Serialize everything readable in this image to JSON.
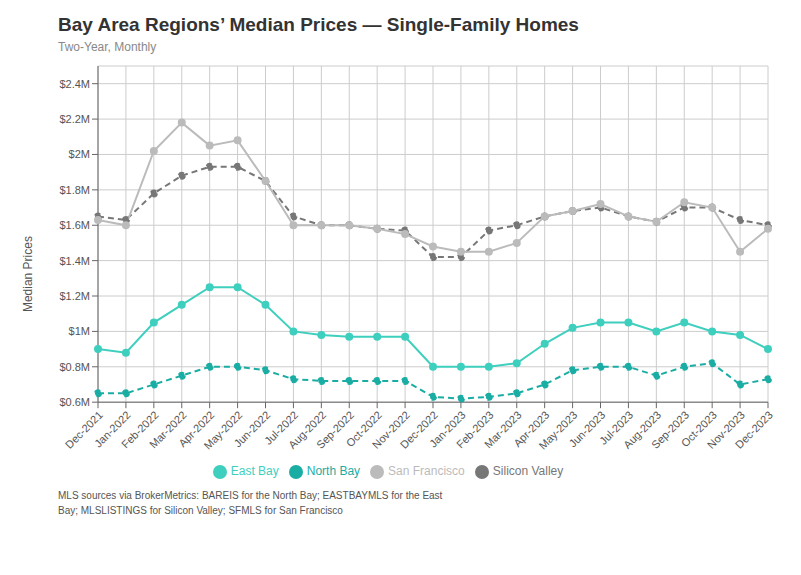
{
  "chart_data": {
    "type": "line",
    "title": "Bay Area Regions’ Median Prices — Single-Family Homes",
    "subtitle": "Two-Year, Monthly",
    "y_label": "Median Prices",
    "footnote": [
      "MLS sources via BrokerMetrics: BAREIS for the North Bay; EASTBAYMLS for the East",
      "Bay; MLSLISTINGS for Silicon Valley; SFMLS for San Francisco"
    ],
    "categories": [
      "Dec-2021",
      "Jan-2022",
      "Feb-2022",
      "Mar-2022",
      "Apr-2022",
      "May-2022",
      "Jun-2022",
      "Jul-2022",
      "Aug-2022",
      "Sep-2022",
      "Oct-2022",
      "Nov-2022",
      "Dec-2022",
      "Jan-2023",
      "Feb-2023",
      "Mar-2023",
      "Apr-2023",
      "May-2023",
      "Jun-2023",
      "Jul-2023",
      "Aug-2023",
      "Sep-2023",
      "Oct-2023",
      "Nov-2023",
      "Dec-2023"
    ],
    "series": [
      {
        "name": "North Bay",
        "color": "#1aada4",
        "marker": "circle",
        "line_style": "dashed",
        "values": [
          0.65,
          0.65,
          0.7,
          0.75,
          0.8,
          0.8,
          0.78,
          0.73,
          0.72,
          0.72,
          0.72,
          0.72,
          0.63,
          0.62,
          0.63,
          0.65,
          0.7,
          0.78,
          0.8,
          0.8,
          0.75,
          0.8,
          0.82,
          0.7,
          0.73
        ]
      },
      {
        "name": "East Bay",
        "color": "#3ecfbe",
        "marker": "circle",
        "line_style": "solid",
        "values": [
          0.9,
          0.88,
          1.05,
          1.15,
          1.25,
          1.25,
          1.15,
          1.0,
          0.98,
          0.97,
          0.97,
          0.97,
          0.8,
          0.8,
          0.8,
          0.82,
          0.93,
          1.02,
          1.05,
          1.05,
          1.0,
          1.05,
          1.0,
          0.98,
          0.9
        ]
      },
      {
        "name": "Silicon Valley",
        "color": "#777777",
        "marker": "circle",
        "line_style": "dashed",
        "values": [
          1.65,
          1.63,
          1.78,
          1.88,
          1.93,
          1.93,
          1.85,
          1.65,
          1.6,
          1.6,
          1.58,
          1.57,
          1.42,
          1.42,
          1.57,
          1.6,
          1.65,
          1.68,
          1.7,
          1.65,
          1.62,
          1.7,
          1.7,
          1.63,
          1.6
        ]
      },
      {
        "name": "San Francisco",
        "color": "#bbbbbb",
        "marker": "circle",
        "line_style": "solid",
        "values": [
          1.63,
          1.6,
          2.02,
          2.18,
          2.05,
          2.08,
          1.85,
          1.6,
          1.6,
          1.6,
          1.58,
          1.55,
          1.48,
          1.45,
          1.45,
          1.5,
          1.65,
          1.68,
          1.72,
          1.65,
          1.62,
          1.73,
          1.7,
          1.45,
          1.58
        ]
      }
    ],
    "ylim": [
      0.6,
      2.5
    ],
    "yticks": [
      {
        "value": 0.6,
        "label": "$0.6M"
      },
      {
        "value": 0.8,
        "label": "$0.8M"
      },
      {
        "value": 1.0,
        "label": "$1M"
      },
      {
        "value": 1.2,
        "label": "$1.2M"
      },
      {
        "value": 1.4,
        "label": "$1.4M"
      },
      {
        "value": 1.6,
        "label": "$1.6M"
      },
      {
        "value": 1.8,
        "label": "$1.8M"
      },
      {
        "value": 2.0,
        "label": "$2M"
      },
      {
        "value": 2.2,
        "label": "$2.2M"
      },
      {
        "value": 2.4,
        "label": "$2.4M"
      }
    ],
    "grid": true,
    "legend": "bottom"
  }
}
